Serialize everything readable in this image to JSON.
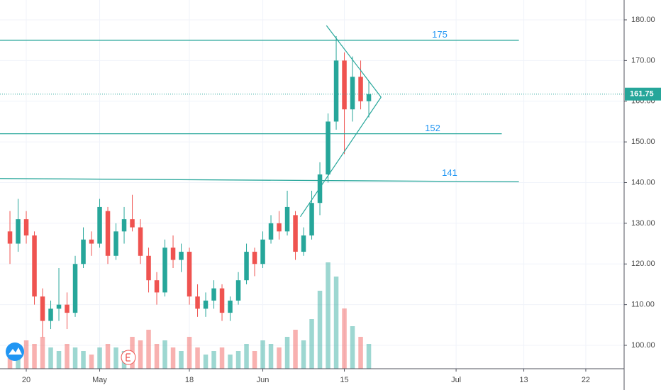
{
  "chart_data": {
    "type": "candlestick",
    "up_color": "#26a69a",
    "down_color": "#ef5350",
    "line_color": "#26a69a",
    "grid": true,
    "xlim": [
      -1.22,
      75.3
    ],
    "xticks": [
      {
        "value": 2,
        "label": "20"
      },
      {
        "value": 11,
        "label": "May"
      },
      {
        "value": 22,
        "label": "18"
      },
      {
        "value": 31,
        "label": "Jun"
      },
      {
        "value": 41,
        "label": "15"
      },
      {
        "value": 54.7,
        "label": "Jul"
      },
      {
        "value": 63,
        "label": "13"
      },
      {
        "value": 70.6,
        "label": "22"
      }
    ],
    "ylim": [
      94.25,
      184.88
    ],
    "yticks": [
      {
        "value": 100,
        "label": "100.00"
      },
      {
        "value": 110,
        "label": "110.00"
      },
      {
        "value": 120,
        "label": "120.00"
      },
      {
        "value": 130,
        "label": "130.00"
      },
      {
        "value": 140,
        "label": "140.00"
      },
      {
        "value": 150,
        "label": "150.00"
      },
      {
        "value": 160,
        "label": "160.00"
      },
      {
        "value": 170,
        "label": "170.00"
      },
      {
        "value": 180,
        "label": "180.00"
      }
    ],
    "open": [
      128,
      125,
      131,
      127,
      112,
      106,
      109,
      110,
      108,
      120,
      126,
      125,
      133,
      122,
      128,
      131,
      129,
      122,
      116,
      113,
      124,
      121,
      123,
      112,
      109,
      111,
      114,
      108,
      111,
      116,
      123,
      120,
      126,
      130,
      128,
      132,
      123,
      127,
      135,
      142,
      155,
      170,
      158,
      166,
      160
    ],
    "high": [
      133,
      136,
      133,
      128,
      114,
      111,
      119,
      113,
      122,
      129,
      128,
      136,
      134,
      130,
      134,
      137,
      131,
      124,
      118,
      126,
      127,
      125,
      124,
      115,
      113,
      116,
      115,
      112,
      118,
      125,
      124,
      128,
      132,
      133,
      138,
      133,
      129,
      138,
      145,
      157,
      176,
      172,
      171,
      170,
      165
    ],
    "low": [
      120,
      123,
      125,
      110,
      102,
      104,
      106,
      104,
      107,
      119,
      122,
      124,
      120,
      121,
      125,
      128,
      120,
      113,
      110,
      112,
      119,
      118,
      110,
      107,
      107,
      109,
      106,
      106,
      110,
      115,
      117,
      119,
      125,
      126,
      127,
      121,
      122,
      126,
      132,
      140,
      153,
      147,
      155,
      158,
      156
    ],
    "close": [
      125,
      131,
      127,
      112,
      106,
      109,
      110,
      108,
      120,
      126,
      125,
      134,
      122,
      128,
      131,
      129,
      122,
      116,
      113,
      124,
      121,
      123,
      112,
      109,
      111,
      114,
      108,
      111,
      116,
      123,
      120,
      126,
      130,
      128,
      134,
      123,
      127,
      135,
      142,
      155,
      170,
      158,
      166,
      160,
      161.75
    ],
    "volume": [
      30,
      25,
      40,
      35,
      45,
      30,
      25,
      35,
      30,
      25,
      20,
      30,
      35,
      30,
      25,
      45,
      40,
      55,
      35,
      40,
      30,
      25,
      45,
      30,
      20,
      25,
      30,
      20,
      25,
      35,
      25,
      40,
      35,
      30,
      45,
      55,
      40,
      70,
      110,
      150,
      130,
      85,
      60,
      45,
      35
    ],
    "levels": [
      {
        "y": [
          175,
          175
        ],
        "x": [
          -1.22,
          62.4
        ]
      },
      {
        "y": [
          152,
          152
        ],
        "x": [
          -1.22,
          60.3
        ]
      },
      {
        "y": [
          141,
          140.2
        ],
        "x": [
          -1.22,
          62.4
        ]
      }
    ],
    "trend_lines": [
      {
        "x": [
          38.8,
          45.5
        ],
        "y": [
          178.6,
          161.0
        ]
      },
      {
        "x": [
          45.5,
          35.6
        ],
        "y": [
          161.0,
          131.6
        ]
      }
    ],
    "last_price": 161.75
  }
}
